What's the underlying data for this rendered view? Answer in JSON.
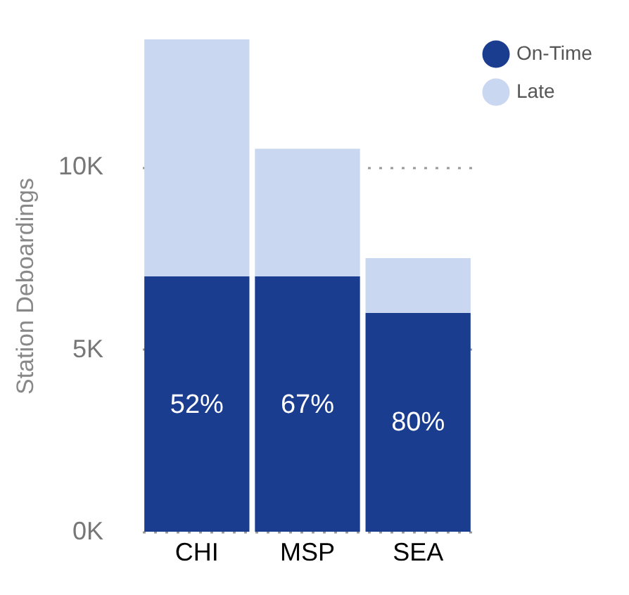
{
  "chart_data": {
    "type": "bar",
    "stacked": true,
    "ylabel": "Station Deboardings",
    "categories": [
      "CHI",
      "MSP",
      "SEA"
    ],
    "series": [
      {
        "name": "On-Time",
        "color": "#1a3d8f",
        "values": [
          7.0,
          7.0,
          6.0
        ]
      },
      {
        "name": "Late",
        "color": "#c9d7f0",
        "values": [
          6.5,
          3.5,
          1.5
        ]
      }
    ],
    "annotations": [
      "52%",
      "67%",
      "80%"
    ],
    "ylim": [
      0,
      13.5
    ],
    "yticks": [
      {
        "value": 0,
        "label": "0K"
      },
      {
        "value": 5,
        "label": "5K"
      },
      {
        "value": 10,
        "label": "10K"
      }
    ],
    "grid": "y",
    "legend": "top right"
  }
}
